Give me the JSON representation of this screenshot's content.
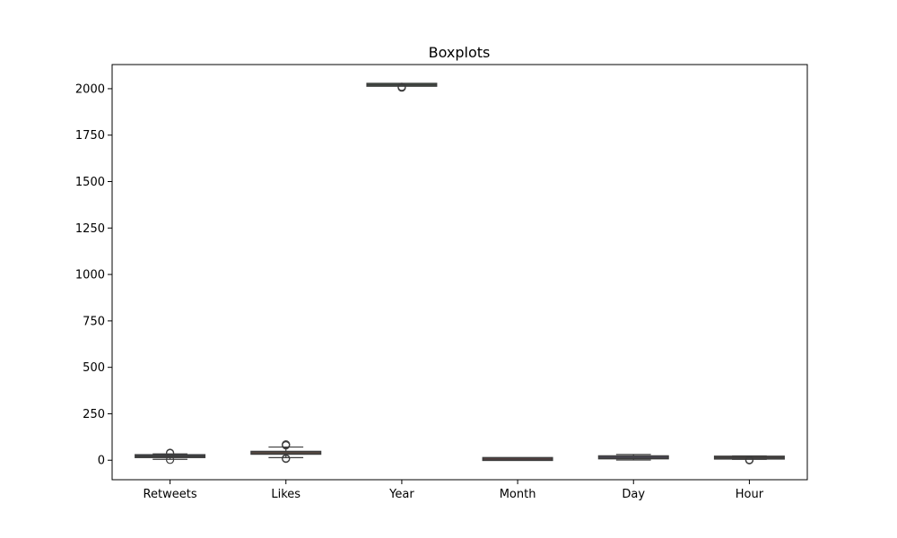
{
  "chart_data": {
    "type": "box",
    "title": "Boxplots",
    "xlabel": "",
    "ylabel": "",
    "ylim": [
      -105,
      2130
    ],
    "yticks": [
      0,
      250,
      500,
      750,
      1000,
      1250,
      1500,
      1750,
      2000
    ],
    "categories": [
      "Retweets",
      "Likes",
      "Year",
      "Month",
      "Day",
      "Hour"
    ],
    "boxes": [
      {
        "name": "Retweets",
        "whisker_low": 5,
        "q1": 18,
        "median": 22,
        "q3": 26,
        "whisker_high": 34,
        "outliers": [
          2,
          38,
          40
        ],
        "color": "#4c72b0"
      },
      {
        "name": "Likes",
        "whisker_low": 14,
        "q1": 33,
        "median": 40,
        "q3": 47,
        "whisker_high": 71,
        "outliers": [
          8,
          10,
          80,
          83,
          85
        ],
        "color": "#dd8452"
      },
      {
        "name": "Year",
        "whisker_low": 2015,
        "q1": 2020,
        "median": 2021,
        "q3": 2022,
        "whisker_high": 2023,
        "outliers": [
          2006,
          2008,
          2010
        ],
        "color": "#55a868"
      },
      {
        "name": "Month",
        "whisker_low": 1,
        "q1": 4,
        "median": 6,
        "q3": 9,
        "whisker_high": 12,
        "outliers": [],
        "color": "#c44e52"
      },
      {
        "name": "Day",
        "whisker_low": 1,
        "q1": 8,
        "median": 15,
        "q3": 23,
        "whisker_high": 31,
        "outliers": [],
        "color": "#8172b3"
      },
      {
        "name": "Hour",
        "whisker_low": 5,
        "q1": 10,
        "median": 14,
        "q3": 18,
        "whisker_high": 23,
        "outliers": [
          0,
          1,
          2
        ],
        "color": "#937860"
      }
    ]
  }
}
